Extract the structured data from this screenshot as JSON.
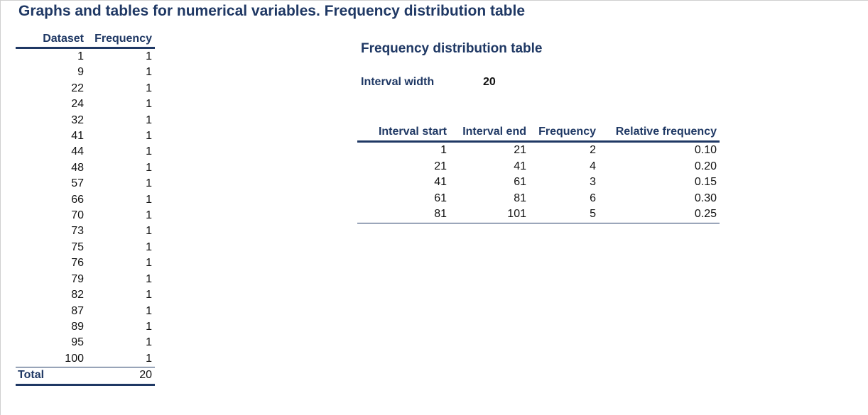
{
  "page_title": "Graphs and tables for numerical variables. Frequency distribution table",
  "dataset_table": {
    "headers": [
      "Dataset",
      "Frequency"
    ],
    "rows": [
      [
        "1",
        "1"
      ],
      [
        "9",
        "1"
      ],
      [
        "22",
        "1"
      ],
      [
        "24",
        "1"
      ],
      [
        "32",
        "1"
      ],
      [
        "41",
        "1"
      ],
      [
        "44",
        "1"
      ],
      [
        "48",
        "1"
      ],
      [
        "57",
        "1"
      ],
      [
        "66",
        "1"
      ],
      [
        "70",
        "1"
      ],
      [
        "73",
        "1"
      ],
      [
        "75",
        "1"
      ],
      [
        "76",
        "1"
      ],
      [
        "79",
        "1"
      ],
      [
        "82",
        "1"
      ],
      [
        "87",
        "1"
      ],
      [
        "89",
        "1"
      ],
      [
        "95",
        "1"
      ],
      [
        "100",
        "1"
      ]
    ],
    "total_label": "Total",
    "total_value": "20"
  },
  "freq_section": {
    "title": "Frequency distribution table",
    "interval_width_label": "Interval width",
    "interval_width_value": "20",
    "headers": [
      "Interval start",
      "Interval end",
      "Frequency",
      "Relative frequency"
    ],
    "rows": [
      [
        "1",
        "21",
        "2",
        "0.10"
      ],
      [
        "21",
        "41",
        "4",
        "0.20"
      ],
      [
        "41",
        "61",
        "3",
        "0.15"
      ],
      [
        "61",
        "81",
        "6",
        "0.30"
      ],
      [
        "81",
        "101",
        "5",
        "0.25"
      ]
    ]
  },
  "colors": {
    "heading": "#1f3864",
    "text": "#111111",
    "rule": "#1f3864"
  }
}
